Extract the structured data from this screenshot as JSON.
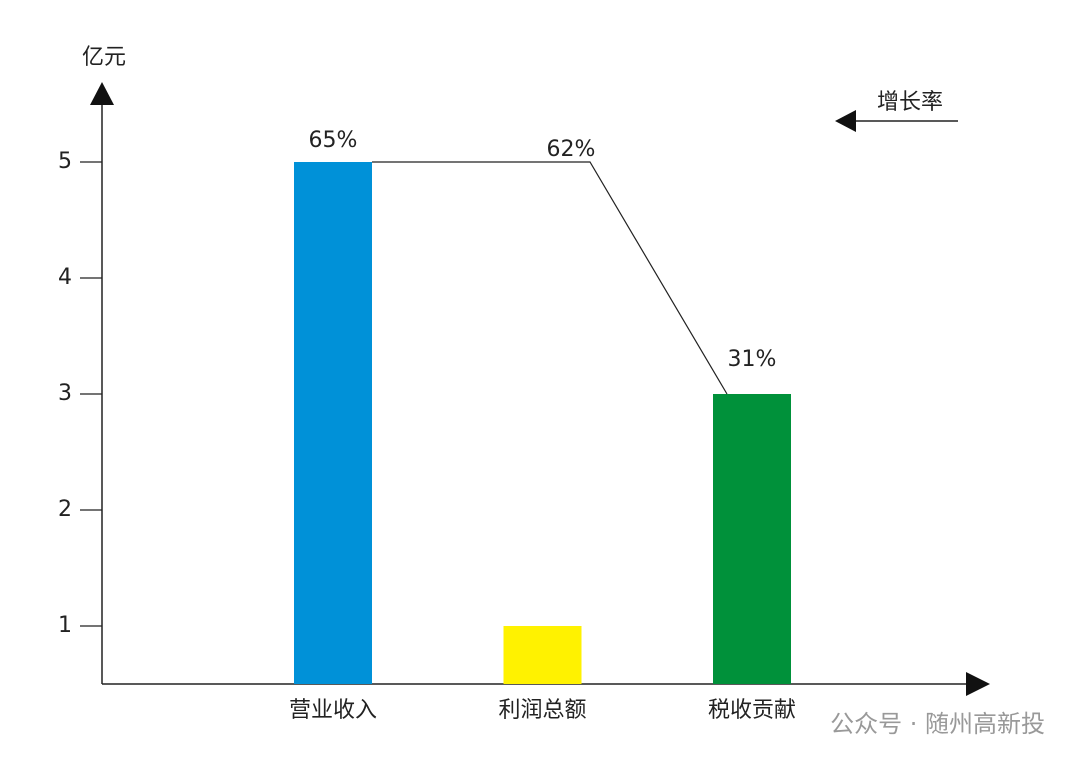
{
  "chart_data": {
    "type": "bar",
    "y_label": "亿元",
    "categories": [
      "营业收入",
      "利润总额",
      "税收贡献"
    ],
    "values": [
      5,
      1,
      3
    ],
    "colors": [
      "#0091d8",
      "#fff200",
      "#00913a"
    ],
    "ylim": [
      0.5,
      5.5
    ],
    "yticks": [
      1,
      2,
      3,
      4,
      5
    ],
    "growth": {
      "name": "增长率",
      "values": [
        65,
        62,
        31
      ],
      "value_labels": [
        "65%",
        "62%",
        "31%"
      ]
    },
    "watermark": "公众号 · 随州高新投"
  }
}
